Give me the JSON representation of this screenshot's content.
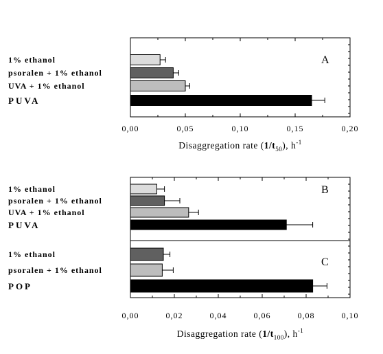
{
  "chart_data": [
    {
      "type": "bar",
      "orientation": "horizontal",
      "panel_label": "A",
      "categories": [
        "1% ethanol",
        "psoralen + 1% ethanol",
        "UVA + 1% ethanol",
        "PUVA"
      ],
      "values": [
        0.027,
        0.039,
        0.05,
        0.165
      ],
      "errors": [
        0.005,
        0.005,
        0.004,
        0.012
      ],
      "colors": [
        "#dcdcdc",
        "#606060",
        "#bdbdbd",
        "#000000"
      ],
      "xlim": [
        0,
        0.2
      ],
      "xticks": [
        "0,00",
        "0,05",
        "0,10",
        "0,15",
        "0,20"
      ],
      "xlabel": {
        "prefix": "Disaggregation rate (",
        "bold": "1/t",
        "sub": "50",
        "suffix": "), h",
        "sup": "-1"
      }
    },
    {
      "type": "bar",
      "orientation": "horizontal",
      "panel_label": "B",
      "categories": [
        "1% ethanol",
        "psoralen + 1% ethanol",
        "UVA + 1% ethanol",
        "PUVA"
      ],
      "values": [
        0.012,
        0.0155,
        0.0265,
        0.071
      ],
      "errors": [
        0.0035,
        0.007,
        0.0045,
        0.012
      ],
      "colors": [
        "#dcdcdc",
        "#606060",
        "#bdbdbd",
        "#000000"
      ],
      "xlim": [
        0,
        0.1
      ]
    },
    {
      "type": "bar",
      "orientation": "horizontal",
      "panel_label": "C",
      "categories": [
        "1% ethanol",
        "psoralen + 1% ethanol",
        "POP"
      ],
      "values": [
        0.015,
        0.0145,
        0.083
      ],
      "errors": [
        0.003,
        0.005,
        0.0065
      ],
      "colors": [
        "#606060",
        "#bdbdbd",
        "#000000"
      ],
      "xlim": [
        0,
        0.1
      ],
      "xticks": [
        "0,00",
        "0,02",
        "0,04",
        "0,06",
        "0,08",
        "0,10"
      ],
      "xlabel": {
        "prefix": "Disaggregation rate (",
        "bold": "1/t",
        "sub": "100",
        "suffix": "), h",
        "sup": "-1"
      }
    }
  ]
}
